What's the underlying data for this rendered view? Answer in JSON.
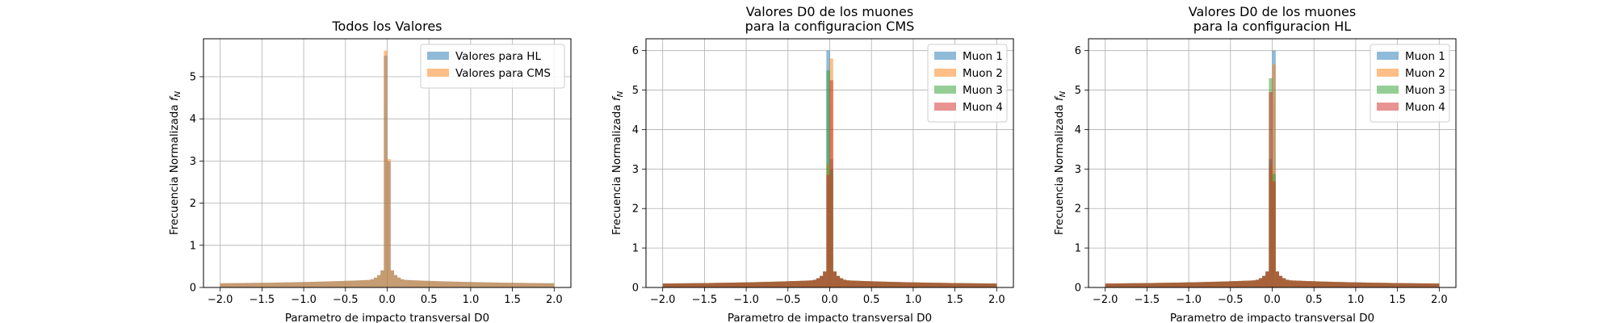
{
  "chart_data": [
    {
      "type": "histogram",
      "title": "Todos los Valores",
      "xlabel": "Parametro de impacto transversal D0",
      "ylabel": "Frecuencia Normalizada f_N",
      "xlim": [
        -2.2,
        2.2
      ],
      "ylim": [
        0,
        5.9
      ],
      "xticks": [
        "−2.0",
        "−1.5",
        "−1.0",
        "−0.5",
        "0.0",
        "0.5",
        "1.0",
        "1.5",
        "2.0"
      ],
      "yticks": [
        "0",
        "1",
        "2",
        "3",
        "4",
        "5"
      ],
      "grid": true,
      "legend_position": "upper right",
      "series": [
        {
          "name": "Valores para HL",
          "color": "#1f77b4",
          "peak": 5.5,
          "peak_x": -0.02
        },
        {
          "name": "Valores para CMS",
          "color": "#ff7f0e",
          "peak": 5.62,
          "peak_x": -0.02
        }
      ]
    },
    {
      "type": "histogram",
      "title": "Valores D0 de los muones\npara la configuracion CMS",
      "xlabel": "Parametro de impacto transversal D0",
      "ylabel": "Frecuencia Normalizada f_N",
      "xlim": [
        -2.2,
        2.2
      ],
      "ylim": [
        0,
        6.3
      ],
      "xticks": [
        "−2.0",
        "−1.5",
        "−1.0",
        "−0.5",
        "0.0",
        "0.5",
        "1.0",
        "1.5",
        "2.0"
      ],
      "yticks": [
        "0",
        "1",
        "2",
        "3",
        "4",
        "5",
        "6"
      ],
      "grid": true,
      "legend_position": "upper right",
      "series": [
        {
          "name": "Muon 1",
          "color": "#1f77b4",
          "peak": 6.0,
          "peak_x": -0.02
        },
        {
          "name": "Muon 2",
          "color": "#ff7f0e",
          "peak": 5.8,
          "peak_x": 0.02
        },
        {
          "name": "Muon 3",
          "color": "#2ca02c",
          "peak": 5.5,
          "peak_x": -0.02
        },
        {
          "name": "Muon 4",
          "color": "#d62728",
          "peak": 5.25,
          "peak_x": 0.02
        }
      ]
    },
    {
      "type": "histogram",
      "title": "Valores D0 de los muones\npara la configuracion HL",
      "xlabel": "Parametro de impacto transversal D0",
      "ylabel": "Frecuencia Normalizada f_N",
      "xlim": [
        -2.2,
        2.2
      ],
      "ylim": [
        0,
        6.3
      ],
      "xticks": [
        "−2.0",
        "−1.5",
        "−1.0",
        "−0.5",
        "0.0",
        "0.5",
        "1.0",
        "1.5",
        "2.0"
      ],
      "yticks": [
        "0",
        "1",
        "2",
        "3",
        "4",
        "5",
        "6"
      ],
      "grid": true,
      "legend_position": "upper right",
      "series": [
        {
          "name": "Muon 1",
          "color": "#1f77b4",
          "peak": 6.0,
          "peak_x": 0.02
        },
        {
          "name": "Muon 2",
          "color": "#ff7f0e",
          "peak": 5.65,
          "peak_x": 0.02
        },
        {
          "name": "Muon 3",
          "color": "#2ca02c",
          "peak": 5.3,
          "peak_x": -0.02
        },
        {
          "name": "Muon 4",
          "color": "#d62728",
          "peak": 4.95,
          "peak_x": -0.02
        }
      ]
    }
  ]
}
